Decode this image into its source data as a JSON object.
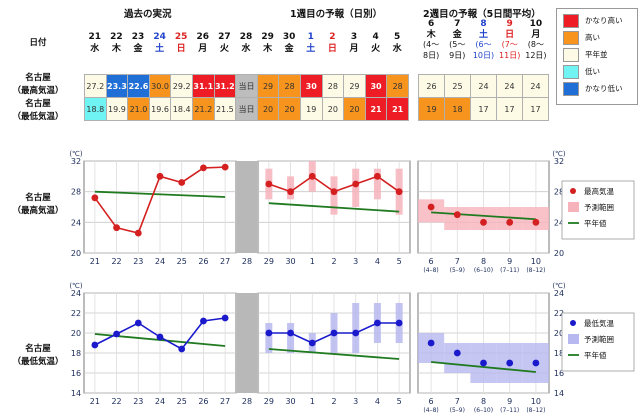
{
  "header": {
    "date_label": "日付",
    "past_title": "過去の実況",
    "week1_title": "1週目の予報（日別）",
    "week2_title": "2週目の予報（5日間平均）"
  },
  "dates": [
    {
      "day": "21",
      "dow": "水",
      "type": "weekday"
    },
    {
      "day": "22",
      "dow": "木",
      "type": "weekday"
    },
    {
      "day": "23",
      "dow": "金",
      "type": "weekday"
    },
    {
      "day": "24",
      "dow": "土",
      "type": "sat"
    },
    {
      "day": "25",
      "dow": "日",
      "type": "sun"
    },
    {
      "day": "26",
      "dow": "月",
      "type": "weekday"
    },
    {
      "day": "27",
      "dow": "火",
      "type": "weekday"
    },
    {
      "day": "28",
      "dow": "水",
      "type": "weekday"
    },
    {
      "day": "29",
      "dow": "木",
      "type": "weekday"
    },
    {
      "day": "30",
      "dow": "金",
      "type": "weekday"
    },
    {
      "day": "1",
      "dow": "土",
      "type": "sat"
    },
    {
      "day": "2",
      "dow": "日",
      "type": "sun"
    },
    {
      "day": "3",
      "dow": "月",
      "type": "weekday"
    },
    {
      "day": "4",
      "dow": "火",
      "type": "weekday"
    },
    {
      "day": "5",
      "dow": "水",
      "type": "weekday"
    }
  ],
  "week2_dates": [
    {
      "day": "6",
      "dow": "木",
      "range_a": "(4〜",
      "range_b": "8日)"
    },
    {
      "day": "7",
      "dow": "金",
      "range_a": "(5〜",
      "range_b": "9日)"
    },
    {
      "day": "8",
      "dow": "土",
      "range_a": "(6〜",
      "range_b": "10日)"
    },
    {
      "day": "9",
      "dow": "日",
      "range_a": "(7〜",
      "range_b": "11日)"
    },
    {
      "day": "10",
      "dow": "月",
      "range_a": "(8〜",
      "range_b": "12日)"
    }
  ],
  "rows": {
    "max_label_a": "名古屋",
    "max_label_b": "（最高気温）",
    "min_label_a": "名古屋",
    "min_label_b": "（最低気温）",
    "max_cells": [
      {
        "v": "27.2",
        "c": "normal"
      },
      {
        "v": "23.3",
        "c": "very-low"
      },
      {
        "v": "22.6",
        "c": "very-low"
      },
      {
        "v": "30.0",
        "c": "high"
      },
      {
        "v": "29.2",
        "c": "normal"
      },
      {
        "v": "31.1",
        "c": "very-high"
      },
      {
        "v": "31.2",
        "c": "very-high"
      },
      {
        "v": "当日",
        "c": "today"
      },
      {
        "v": "29",
        "c": "high"
      },
      {
        "v": "28",
        "c": "high"
      },
      {
        "v": "30",
        "c": "very-high"
      },
      {
        "v": "28",
        "c": "normal"
      },
      {
        "v": "29",
        "c": "normal"
      },
      {
        "v": "30",
        "c": "very-high"
      },
      {
        "v": "28",
        "c": "high"
      }
    ],
    "min_cells": [
      {
        "v": "18.8",
        "c": "low"
      },
      {
        "v": "19.9",
        "c": "normal"
      },
      {
        "v": "21.0",
        "c": "high"
      },
      {
        "v": "19.6",
        "c": "normal"
      },
      {
        "v": "18.4",
        "c": "normal"
      },
      {
        "v": "21.2",
        "c": "high"
      },
      {
        "v": "21.5",
        "c": "normal"
      },
      {
        "v": "当日",
        "c": "today"
      },
      {
        "v": "20",
        "c": "high"
      },
      {
        "v": "20",
        "c": "high"
      },
      {
        "v": "19",
        "c": "normal"
      },
      {
        "v": "20",
        "c": "normal"
      },
      {
        "v": "20",
        "c": "high"
      },
      {
        "v": "21",
        "c": "very-high"
      },
      {
        "v": "21",
        "c": "very-high"
      }
    ],
    "week2_max_cells": [
      {
        "v": "26",
        "c": "normal"
      },
      {
        "v": "25",
        "c": "normal"
      },
      {
        "v": "24",
        "c": "normal"
      },
      {
        "v": "24",
        "c": "normal"
      },
      {
        "v": "24",
        "c": "normal"
      }
    ],
    "week2_min_cells": [
      {
        "v": "19",
        "c": "high"
      },
      {
        "v": "18",
        "c": "high"
      },
      {
        "v": "17",
        "c": "normal"
      },
      {
        "v": "17",
        "c": "normal"
      },
      {
        "v": "17",
        "c": "normal"
      }
    ]
  },
  "legend_table": [
    {
      "label": "かなり高い",
      "color": "#ee1c24"
    },
    {
      "label": "高い",
      "color": "#f7941d"
    },
    {
      "label": "平年並",
      "color": "#fdfbe6"
    },
    {
      "label": "低い",
      "color": "#6ff3f3"
    },
    {
      "label": "かなり低い",
      "color": "#1f6fd6"
    }
  ],
  "colors": {
    "max_line": "#d42020",
    "min_line": "#1a1acc",
    "normal_line": "#207a20",
    "max_range": "#f7b3bc",
    "min_range": "#b8b8f0",
    "today_bar": "#b8b8b8"
  },
  "chart_data": [
    {
      "type": "line",
      "chart_label_a": "名古屋",
      "chart_label_b": "（最高気温）",
      "unit": "(℃)",
      "ylim": [
        20,
        32
      ],
      "yticks": [
        20,
        24,
        28,
        32
      ],
      "grid": true,
      "panel1": {
        "categories": [
          "21",
          "22",
          "23",
          "24",
          "25",
          "26",
          "27"
        ],
        "observed": [
          27.2,
          23.3,
          22.6,
          30.0,
          29.2,
          31.1,
          31.2
        ],
        "normal": [
          28.0,
          27.3
        ]
      },
      "today_label": "28",
      "panel2": {
        "categories": [
          "29",
          "30",
          "1",
          "2",
          "3",
          "4",
          "5"
        ],
        "forecast": [
          29,
          28,
          30,
          28,
          29,
          30,
          28
        ],
        "range_low": [
          27,
          27,
          28,
          25,
          26,
          27,
          25
        ],
        "range_high": [
          31,
          30,
          32,
          30,
          31,
          31,
          31
        ],
        "normal": [
          26.5,
          25.4
        ]
      },
      "panel3": {
        "categories": [
          "6",
          "7",
          "8",
          "9",
          "10"
        ],
        "subcategories": [
          "(4–8)",
          "(5–9)",
          "(6–10)",
          "(7–11)",
          "(8–12)"
        ],
        "forecast": [
          26,
          25,
          24,
          24,
          24
        ],
        "range_low": [
          24,
          23,
          23,
          23,
          23
        ],
        "range_high": [
          27,
          26,
          26,
          26,
          26
        ],
        "normal": [
          25.3,
          24.4
        ]
      },
      "legend": [
        {
          "label": "最高気温",
          "kind": "point"
        },
        {
          "label": "予測範囲",
          "kind": "range"
        },
        {
          "label": "平年値",
          "kind": "line"
        }
      ]
    },
    {
      "type": "line",
      "chart_label_a": "名古屋",
      "chart_label_b": "（最低気温）",
      "unit": "(℃)",
      "ylim": [
        14,
        24
      ],
      "yticks": [
        14,
        16,
        18,
        20,
        22,
        24
      ],
      "grid": true,
      "panel1": {
        "categories": [
          "21",
          "22",
          "23",
          "24",
          "25",
          "26",
          "27"
        ],
        "observed": [
          18.8,
          19.9,
          21.0,
          19.6,
          18.4,
          21.2,
          21.5
        ],
        "normal": [
          19.9,
          18.7
        ]
      },
      "today_label": "28",
      "panel2": {
        "categories": [
          "29",
          "30",
          "1",
          "2",
          "3",
          "4",
          "5"
        ],
        "forecast": [
          20,
          20,
          19,
          20,
          20,
          21,
          21
        ],
        "range_low": [
          18,
          18,
          18,
          18,
          18,
          19,
          19
        ],
        "range_high": [
          21,
          21,
          20,
          22,
          23,
          23,
          23
        ],
        "normal": [
          18.4,
          17.4
        ]
      },
      "panel3": {
        "categories": [
          "6",
          "7",
          "8",
          "9",
          "10"
        ],
        "subcategories": [
          "(4–8)",
          "(5–9)",
          "(6–10)",
          "(7–11)",
          "(8–12)"
        ],
        "forecast": [
          19,
          18,
          17,
          17,
          17
        ],
        "range_low": [
          17,
          16,
          15,
          15,
          15
        ],
        "range_high": [
          20,
          19,
          19,
          19,
          19
        ],
        "normal": [
          17.1,
          16.1
        ]
      },
      "legend": [
        {
          "label": "最低気温",
          "kind": "point"
        },
        {
          "label": "予測範囲",
          "kind": "range"
        },
        {
          "label": "平年値",
          "kind": "line"
        }
      ]
    }
  ]
}
